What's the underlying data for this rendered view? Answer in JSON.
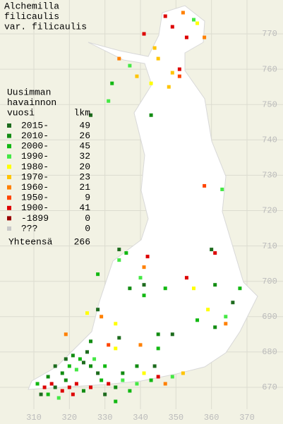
{
  "title": [
    "Alchemilla",
    "filicaulis",
    "var. filicaulis"
  ],
  "legend": {
    "header": [
      "Uusimman",
      "havainnon",
      "vuosi"
    ],
    "count_header": "lkm",
    "periods": [
      {
        "label": "2015-",
        "count": 49,
        "color": "#1d6b1d"
      },
      {
        "label": "2010-",
        "count": 26,
        "color": "#128c12"
      },
      {
        "label": "2000-",
        "count": 45,
        "color": "#12b812"
      },
      {
        "label": "1990-",
        "count": 32,
        "color": "#44e844"
      },
      {
        "label": "1980-",
        "count": 20,
        "color": "#ffff00"
      },
      {
        "label": "1970-",
        "count": 23,
        "color": "#ffc400"
      },
      {
        "label": "1960-",
        "count": 21,
        "color": "#ff8000"
      },
      {
        "label": "1950-",
        "count": 9,
        "color": "#ff4400"
      },
      {
        "label": "1900-",
        "count": 41,
        "color": "#dd0000"
      },
      {
        "label": "-1899",
        "count": 0,
        "color": "#990000"
      },
      {
        "label": "???",
        "count": 0,
        "color": "#c8c8c8"
      }
    ],
    "total_label": "Yhteensä",
    "total": 266
  },
  "xticks": [
    310,
    320,
    330,
    340,
    350,
    360,
    370
  ],
  "yticks": [
    670,
    680,
    690,
    700,
    710,
    720,
    730,
    740,
    750,
    760,
    770
  ],
  "records": [
    [
      347,
      775,
      8
    ],
    [
      352,
      776,
      6
    ],
    [
      355,
      774,
      3
    ],
    [
      349,
      772,
      8
    ],
    [
      356,
      773,
      4
    ],
    [
      353,
      769,
      8
    ],
    [
      358,
      769,
      6
    ],
    [
      344,
      766,
      5
    ],
    [
      341,
      770,
      8
    ],
    [
      334,
      763,
      6
    ],
    [
      345,
      763,
      5
    ],
    [
      337,
      761,
      3
    ],
    [
      351,
      760,
      8
    ],
    [
      349,
      759,
      5
    ],
    [
      343,
      756,
      4
    ],
    [
      339,
      758,
      5
    ],
    [
      351,
      758,
      7
    ],
    [
      348,
      755,
      5
    ],
    [
      332,
      756,
      2
    ],
    [
      331,
      751,
      3
    ],
    [
      326,
      747,
      0
    ],
    [
      343,
      747,
      1
    ],
    [
      358,
      727,
      7
    ],
    [
      363,
      726,
      3
    ],
    [
      334,
      706,
      3
    ],
    [
      341,
      704,
      6
    ],
    [
      342,
      707,
      8
    ],
    [
      336,
      708,
      2
    ],
    [
      334,
      709,
      0
    ],
    [
      360,
      709,
      0
    ],
    [
      361,
      708,
      8
    ],
    [
      328,
      702,
      2
    ],
    [
      340,
      701,
      3
    ],
    [
      337,
      698,
      1
    ],
    [
      341,
      699,
      0
    ],
    [
      353,
      701,
      8
    ],
    [
      347,
      698,
      2
    ],
    [
      355,
      698,
      4
    ],
    [
      361,
      699,
      1
    ],
    [
      368,
      698,
      2
    ],
    [
      366,
      694,
      0
    ],
    [
      364,
      690,
      3
    ],
    [
      359,
      692,
      4
    ],
    [
      356,
      689,
      2
    ],
    [
      364,
      688,
      6
    ],
    [
      361,
      687,
      1
    ],
    [
      325,
      691,
      4
    ],
    [
      329,
      690,
      6
    ],
    [
      333,
      688,
      4
    ],
    [
      331,
      682,
      7
    ],
    [
      333,
      681,
      4
    ],
    [
      319,
      685,
      6
    ],
    [
      326,
      683,
      1
    ],
    [
      334,
      684,
      0
    ],
    [
      340,
      682,
      6
    ],
    [
      345,
      685,
      1
    ],
    [
      349,
      685,
      0
    ],
    [
      345,
      681,
      2
    ],
    [
      328,
      692,
      0
    ],
    [
      341,
      696,
      2
    ],
    [
      311,
      671,
      2
    ],
    [
      313,
      670,
      8
    ],
    [
      315,
      671,
      8
    ],
    [
      316,
      670,
      0
    ],
    [
      318,
      669,
      8
    ],
    [
      319,
      672,
      1
    ],
    [
      320,
      670,
      8
    ],
    [
      322,
      671,
      8
    ],
    [
      324,
      669,
      1
    ],
    [
      321,
      668,
      8
    ],
    [
      317,
      667,
      3
    ],
    [
      314,
      668,
      2
    ],
    [
      312,
      668,
      0
    ],
    [
      318,
      674,
      1
    ],
    [
      320,
      676,
      2
    ],
    [
      322,
      675,
      3
    ],
    [
      324,
      677,
      0
    ],
    [
      326,
      676,
      1
    ],
    [
      319,
      678,
      0
    ],
    [
      321,
      679,
      1
    ],
    [
      323,
      678,
      2
    ],
    [
      325,
      680,
      0
    ],
    [
      327,
      678,
      3
    ],
    [
      316,
      676,
      0
    ],
    [
      314,
      673,
      1
    ],
    [
      329,
      672,
      2
    ],
    [
      331,
      671,
      8
    ],
    [
      333,
      670,
      1
    ],
    [
      335,
      672,
      3
    ],
    [
      337,
      669,
      2
    ],
    [
      330,
      668,
      0
    ],
    [
      333,
      666,
      2
    ],
    [
      339,
      671,
      3
    ],
    [
      341,
      674,
      4
    ],
    [
      343,
      672,
      2
    ],
    [
      345,
      673,
      8
    ],
    [
      347,
      671,
      6
    ],
    [
      335,
      674,
      1
    ],
    [
      330,
      676,
      2
    ],
    [
      339,
      676,
      1
    ],
    [
      344,
      676,
      0
    ],
    [
      349,
      673,
      3
    ],
    [
      352,
      674,
      5
    ],
    [
      326,
      670,
      8
    ],
    [
      328,
      674,
      0
    ]
  ]
}
